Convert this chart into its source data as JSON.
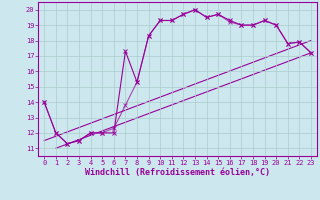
{
  "bg_color": "#cce8ee",
  "line_color": "#990099",
  "grid_color": "#aacccc",
  "xlabel": "Windchill (Refroidissement éolien,°C)",
  "xlim": [
    -0.5,
    23.5
  ],
  "ylim": [
    10.5,
    20.5
  ],
  "xticks": [
    0,
    1,
    2,
    3,
    4,
    5,
    6,
    7,
    8,
    9,
    10,
    11,
    12,
    13,
    14,
    15,
    16,
    17,
    18,
    19,
    20,
    21,
    22,
    23
  ],
  "yticks": [
    11,
    12,
    13,
    14,
    15,
    16,
    17,
    18,
    19,
    20
  ],
  "line1_x": [
    0,
    1,
    2,
    3,
    4,
    5,
    6,
    7,
    8,
    9,
    10,
    11,
    12,
    13,
    14,
    15,
    16,
    17,
    18,
    19,
    20,
    21,
    22,
    23
  ],
  "line1_y": [
    14,
    12,
    11.3,
    11.5,
    12.0,
    12.0,
    12.0,
    17.3,
    15.3,
    18.3,
    19.3,
    19.3,
    19.7,
    20.0,
    19.5,
    19.7,
    19.3,
    19.0,
    19.0,
    19.3,
    19.0,
    17.8,
    17.9,
    17.2
  ],
  "line2_x": [
    0,
    1,
    2,
    3,
    4,
    5,
    6,
    7,
    8,
    9,
    10,
    11,
    12,
    13,
    14,
    15,
    16,
    17,
    18,
    19,
    20,
    21,
    22,
    23
  ],
  "line2_y": [
    14,
    12,
    11.3,
    11.5,
    12.0,
    12.0,
    12.3,
    13.8,
    15.3,
    18.3,
    19.3,
    19.3,
    19.7,
    20.0,
    19.5,
    19.7,
    19.2,
    19.0,
    19.0,
    19.3,
    19.0,
    17.8,
    17.9,
    17.2
  ],
  "line3_x": [
    1,
    23
  ],
  "line3_y": [
    11,
    17.2
  ],
  "line4_x": [
    0,
    23
  ],
  "line4_y": [
    11.5,
    18.0
  ],
  "font_family": "monospace",
  "label_fontsize": 6.0,
  "tick_fontsize": 5.0,
  "marker": "x",
  "marker_size": 3,
  "linewidth": 0.8
}
